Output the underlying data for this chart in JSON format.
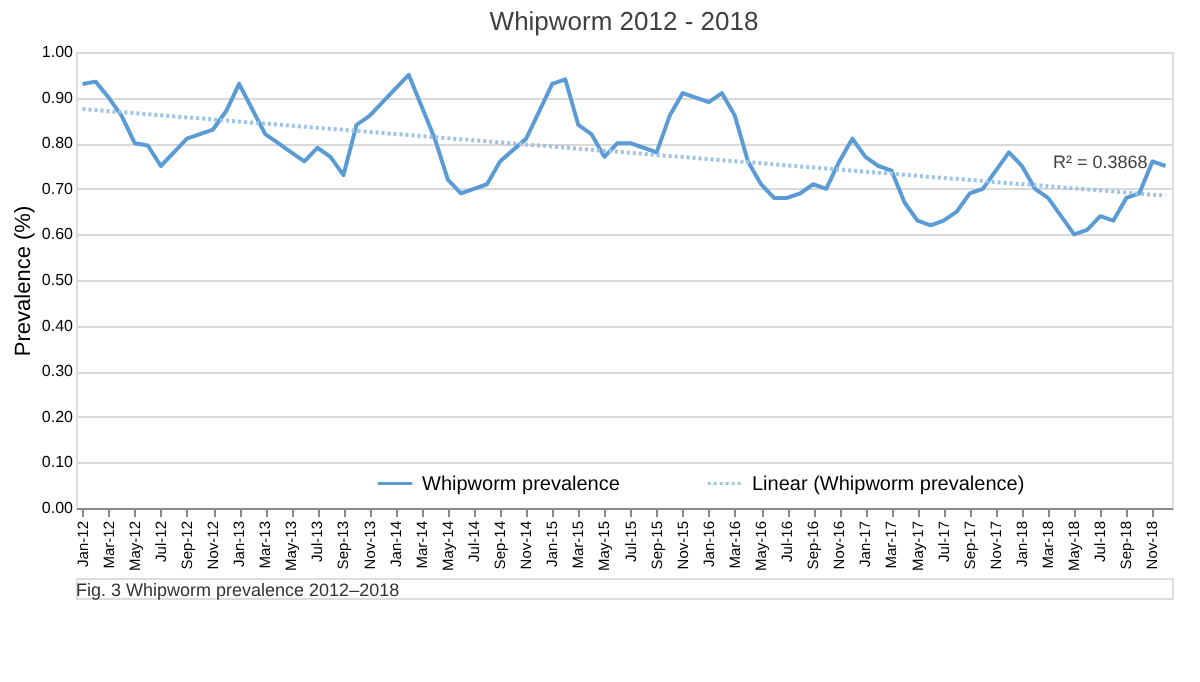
{
  "chart_data": {
    "type": "line",
    "title": "Whipworm 2012 - 2018",
    "ylabel": "Prevalence (%)",
    "categories": [
      "Jan-12",
      null,
      "Mar-12",
      null,
      "May-12",
      null,
      "Jul-12",
      null,
      "Sep-12",
      null,
      "Nov-12",
      null,
      "Jan-13",
      null,
      "Mar-13",
      null,
      "May-13",
      null,
      "Jul-13",
      null,
      "Sep-13",
      null,
      "Nov-13",
      null,
      "Jan-14",
      null,
      "Mar-14",
      null,
      "May-14",
      null,
      "Jul-14",
      null,
      "Sep-14",
      null,
      "Nov-14",
      null,
      "Jan-15",
      null,
      "Mar-15",
      null,
      "May-15",
      null,
      "Jul-15",
      null,
      "Sep-15",
      null,
      "Nov-15",
      null,
      "Jan-16",
      null,
      "Mar-16",
      null,
      "May-16",
      null,
      "Jul-16",
      null,
      "Sep-16",
      null,
      "Nov-16",
      null,
      "Jan-17",
      null,
      "Mar-17",
      null,
      "May-17",
      null,
      "Jul-17",
      null,
      "Sep-17",
      null,
      "Nov-17",
      null,
      "Jan-18",
      null,
      "Mar-18",
      null,
      "May-18",
      null,
      "Jul-18",
      null,
      "Sep-18",
      null,
      "Nov-18",
      null
    ],
    "series": [
      {
        "name": "Whipworm prevalence",
        "color": "#5b9bd5",
        "line_style": "solid",
        "values": [
          0.93,
          0.935,
          0.9,
          0.86,
          0.8,
          0.795,
          0.75,
          0.78,
          0.81,
          0.82,
          0.83,
          0.87,
          0.93,
          0.875,
          0.82,
          0.8,
          0.78,
          0.76,
          0.79,
          0.77,
          0.73,
          0.84,
          0.86,
          0.89,
          0.92,
          0.95,
          0.88,
          0.81,
          0.72,
          0.69,
          0.7,
          0.71,
          0.76,
          0.785,
          0.81,
          0.87,
          0.93,
          0.94,
          0.84,
          0.82,
          0.77,
          0.8,
          0.8,
          0.79,
          0.78,
          0.86,
          0.91,
          0.9,
          0.89,
          0.91,
          0.86,
          0.76,
          0.71,
          0.68,
          0.68,
          0.69,
          0.71,
          0.7,
          0.76,
          0.81,
          0.77,
          0.75,
          0.74,
          0.67,
          0.63,
          0.62,
          0.63,
          0.65,
          0.69,
          0.7,
          0.74,
          0.78,
          0.75,
          0.7,
          0.68,
          0.64,
          0.6,
          0.61,
          0.64,
          0.63,
          0.68,
          0.69,
          0.76,
          0.75
        ]
      },
      {
        "name": "Linear (Whipworm prevalence)",
        "color": "#9dc3e6",
        "line_style": "dotted",
        "values": [
          0.875,
          null,
          null,
          null,
          null,
          null,
          null,
          null,
          null,
          null,
          null,
          null,
          null,
          null,
          null,
          null,
          null,
          null,
          null,
          null,
          null,
          null,
          null,
          null,
          null,
          null,
          null,
          null,
          null,
          null,
          null,
          null,
          null,
          null,
          null,
          null,
          null,
          null,
          null,
          null,
          null,
          null,
          null,
          null,
          null,
          null,
          null,
          null,
          null,
          null,
          null,
          null,
          null,
          null,
          null,
          null,
          null,
          null,
          null,
          null,
          null,
          null,
          null,
          null,
          null,
          null,
          null,
          null,
          null,
          null,
          null,
          null,
          null,
          null,
          null,
          null,
          null,
          null,
          null,
          null,
          null,
          null,
          null,
          0.685
        ]
      }
    ],
    "ylim": [
      0,
      1
    ],
    "yticks": [
      {
        "value": 0,
        "label": "0.00"
      },
      {
        "value": 0.1,
        "label": "0.10"
      },
      {
        "value": 0.2,
        "label": "0.20"
      },
      {
        "value": 0.3,
        "label": "0.30"
      },
      {
        "value": 0.4,
        "label": "0.40"
      },
      {
        "value": 0.5,
        "label": "0.50"
      },
      {
        "value": 0.6,
        "label": "0.60"
      },
      {
        "value": 0.7,
        "label": "0.70"
      },
      {
        "value": 0.8,
        "label": "0.80"
      },
      {
        "value": 0.9,
        "label": "0.90"
      },
      {
        "value": 1,
        "label": "1.00"
      }
    ],
    "grid": "y",
    "legend": "bottom",
    "annotations": [
      {
        "text": "R² = 0.3868",
        "x": "Jul-18",
        "y": 0.72
      },
      "Fig. 3 Whipworm prevalence 2012–2018"
    ]
  }
}
